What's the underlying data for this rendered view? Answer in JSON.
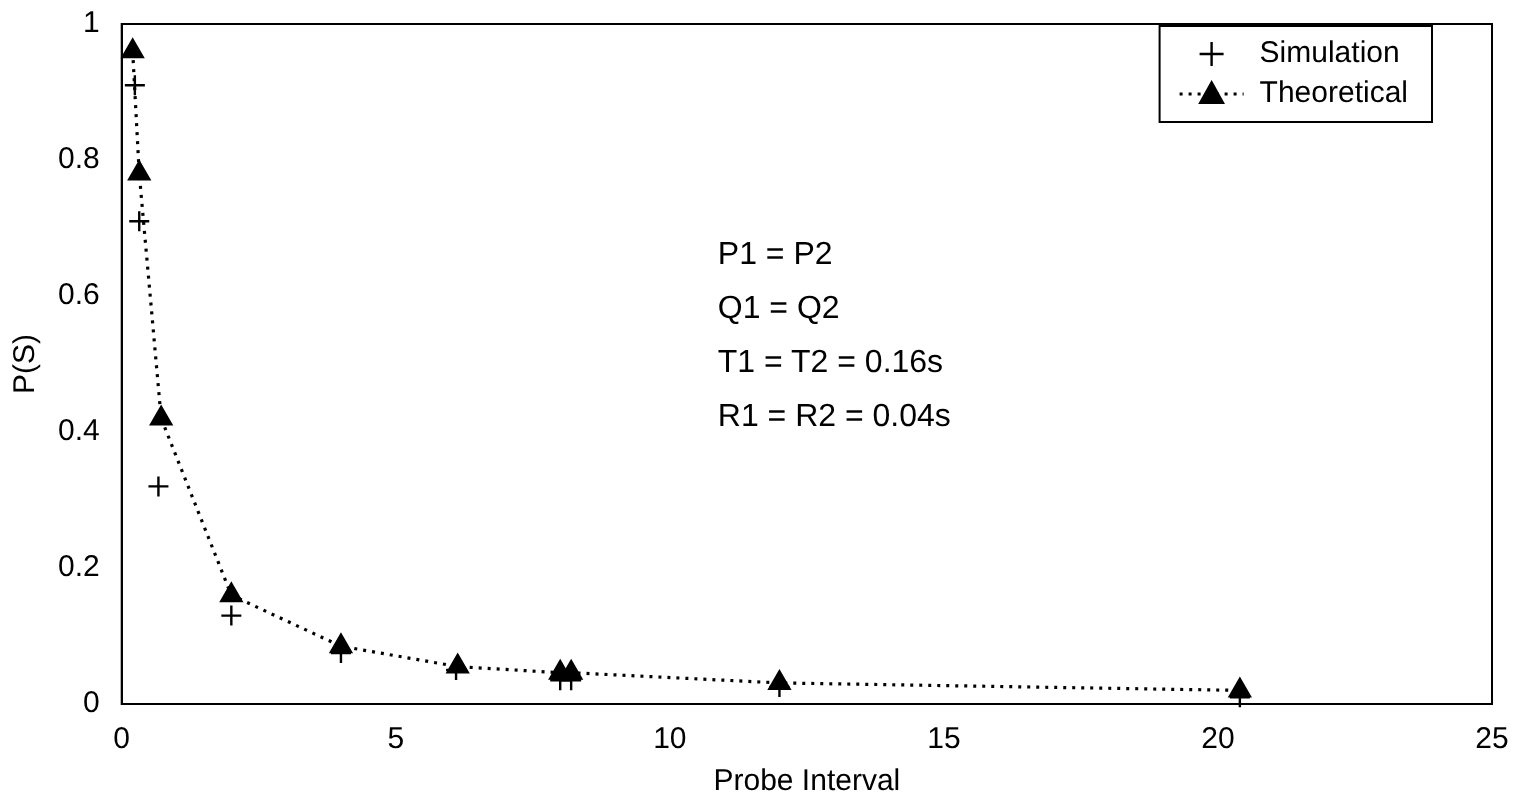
{
  "chart_data": {
    "type": "line",
    "xlabel": "Probe Interval",
    "ylabel": "P(S)",
    "xlim": [
      0,
      25
    ],
    "xticks": [
      0,
      5,
      10,
      15,
      20,
      25
    ],
    "ylim": [
      0,
      1
    ],
    "yticks": [
      0,
      0.2,
      0.4,
      0.6,
      0.8,
      1
    ],
    "grid": false,
    "legend": "top right",
    "series": [
      {
        "name": "Simulation",
        "type": "scatter",
        "marker": "cross",
        "color": "#000000",
        "x": [
          0.24,
          0.32,
          0.67,
          2.0,
          4.0,
          6.1,
          8.0,
          8.2,
          12.0,
          20.4
        ],
        "values": [
          0.91,
          0.71,
          0.32,
          0.13,
          0.075,
          0.05,
          0.035,
          0.035,
          0.025,
          0.01
        ]
      },
      {
        "name": "Theoretical",
        "marker": "triangle",
        "line_style": "dotted",
        "color": "#000000",
        "x": [
          0.2,
          0.32,
          0.72,
          2.0,
          4.0,
          6.13,
          8.0,
          8.2,
          12.0,
          20.4
        ],
        "values": [
          0.96,
          0.78,
          0.42,
          0.16,
          0.085,
          0.055,
          0.046,
          0.046,
          0.031,
          0.02
        ]
      }
    ],
    "annotations": [
      "P1 = P2",
      "Q1 = Q2",
      "T1 = T2 = 0.16s",
      "R1 = R2 = 0.04s"
    ]
  }
}
